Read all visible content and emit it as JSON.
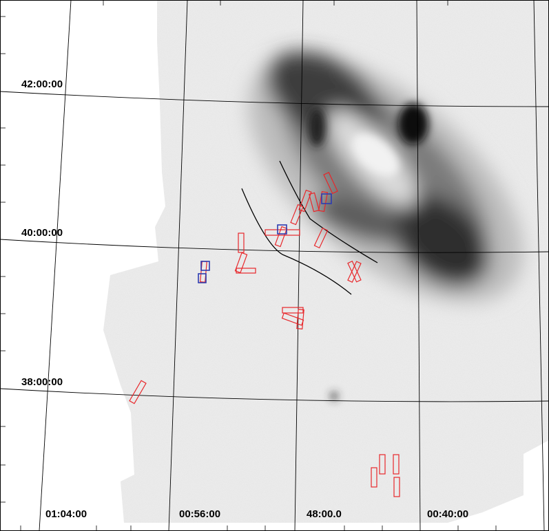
{
  "map": {
    "dec_labels": [
      "42:00:00",
      "40:00:00",
      "38:00:00"
    ],
    "ra_labels": [
      "01:04:00",
      "00:56:00",
      "48:00.0",
      "00:40:00"
    ],
    "colors": {
      "red_regions": "#e8262a",
      "blue_regions": "#2d3bb0",
      "grid": "#000000",
      "background": "#ffffff"
    }
  }
}
